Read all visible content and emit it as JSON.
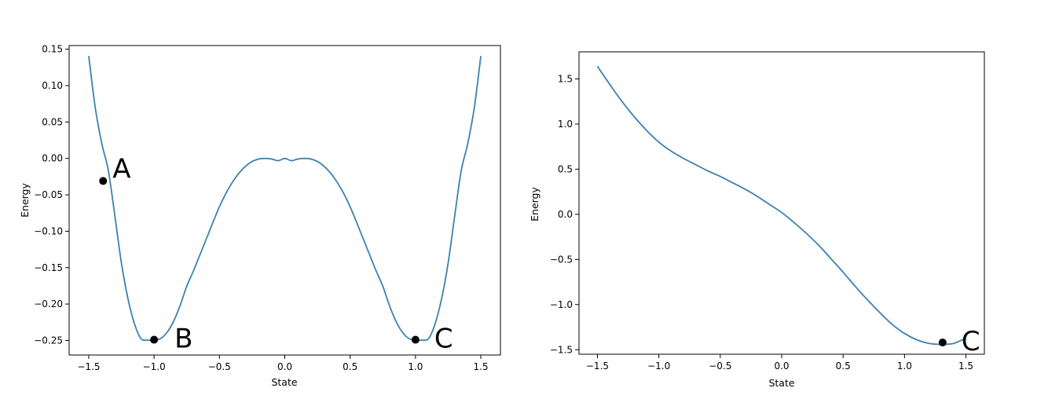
{
  "chart_data": [
    {
      "type": "line",
      "title": "",
      "xlabel": "State",
      "ylabel": "Energy",
      "xlim": [
        -1.65,
        1.65
      ],
      "ylim": [
        -0.27,
        0.155
      ],
      "xticks": [
        -1.5,
        -1.0,
        -0.5,
        0.0,
        0.5,
        1.0,
        1.5
      ],
      "xtick_labels": [
        "−1.5",
        "−1.0",
        "−0.5",
        "0.0",
        "0.5",
        "1.0",
        "1.5"
      ],
      "yticks": [
        0.15,
        0.1,
        0.05,
        0.0,
        -0.05,
        -0.1,
        -0.15,
        -0.2,
        -0.25
      ],
      "ytick_labels": [
        "0.15",
        "0.10",
        "0.05",
        "0.00",
        "−0.05",
        "−0.10",
        "−0.15",
        "−0.20",
        "−0.25"
      ],
      "grid": false,
      "series": [
        {
          "color": "#3b82b0",
          "x": [
            -1.5,
            -1.45,
            -1.4,
            -1.35,
            -1.3,
            -1.25,
            -1.2,
            -1.15,
            -1.1,
            -1.05,
            -1.0,
            -0.95,
            -0.9,
            -0.85,
            -0.8,
            -0.75,
            -0.7,
            -0.65,
            -0.6,
            -0.55,
            -0.5,
            -0.45,
            -0.4,
            -0.35,
            -0.3,
            -0.25,
            -0.2,
            -0.15,
            -0.1,
            -0.05,
            0.0,
            0.05,
            0.1,
            0.15,
            0.2,
            0.25,
            0.3,
            0.35,
            0.4,
            0.45,
            0.5,
            0.55,
            0.6,
            0.65,
            0.7,
            0.75,
            0.8,
            0.85,
            0.9,
            0.95,
            1.0,
            1.05,
            1.1,
            1.15,
            1.2,
            1.25,
            1.3,
            1.35,
            1.4,
            1.45,
            1.5
          ],
          "y": [
            0.1406,
            0.0695,
            0.0204,
            -0.0168,
            -0.0789,
            -0.1436,
            -0.1926,
            -0.2271,
            -0.2475,
            -0.2495,
            -0.25,
            -0.2474,
            -0.2387,
            -0.2234,
            -0.2016,
            -0.1754,
            -0.1549,
            -0.1327,
            -0.1104,
            -0.0879,
            -0.0664,
            -0.0479,
            -0.0325,
            -0.0201,
            -0.0107,
            -0.0042,
            -0.0008,
            0.0,
            -0.0008,
            -0.0031,
            0.0,
            -0.0031,
            -0.0008,
            0.0,
            -0.0008,
            -0.0042,
            -0.0107,
            -0.0201,
            -0.0325,
            -0.0479,
            -0.0664,
            -0.0879,
            -0.1104,
            -0.1327,
            -0.1549,
            -0.1754,
            -0.2016,
            -0.2234,
            -0.2387,
            -0.2474,
            -0.25,
            -0.2495,
            -0.2475,
            -0.2271,
            -0.1926,
            -0.1436,
            -0.0789,
            -0.0168,
            0.0204,
            0.0695,
            0.1406
          ]
        }
      ],
      "points": [
        {
          "label": "A",
          "x": -1.39,
          "y": -0.031
        },
        {
          "label": "B",
          "x": -1.0,
          "y": -0.249
        },
        {
          "label": "C",
          "x": 1.0,
          "y": -0.249
        }
      ]
    },
    {
      "type": "line",
      "title": "",
      "xlabel": "State",
      "ylabel": "Energy",
      "xlim": [
        -1.65,
        1.65
      ],
      "ylim": [
        -1.55,
        1.8
      ],
      "xticks": [
        -1.5,
        -1.0,
        -0.5,
        0.0,
        0.5,
        1.0,
        1.5
      ],
      "xtick_labels": [
        "−1.5",
        "−1.0",
        "−0.5",
        "0.0",
        "0.5",
        "1.0",
        "1.5"
      ],
      "yticks": [
        1.5,
        1.0,
        0.5,
        0.0,
        -0.5,
        -1.0,
        -1.5
      ],
      "ytick_labels": [
        "1.5",
        "1.0",
        "0.5",
        "0.0",
        "−0.5",
        "−1.0",
        "−1.5"
      ],
      "grid": false,
      "series": [
        {
          "color": "#3b82b0",
          "x": [
            -1.5,
            -1.4,
            -1.3,
            -1.2,
            -1.1,
            -1.0,
            -0.9,
            -0.8,
            -0.7,
            -0.6,
            -0.5,
            -0.4,
            -0.3,
            -0.2,
            -0.1,
            0.0,
            0.1,
            0.2,
            0.3,
            0.4,
            0.5,
            0.6,
            0.7,
            0.8,
            0.9,
            1.0,
            1.1,
            1.2,
            1.3,
            1.4,
            1.5
          ],
          "y": [
            1.64,
            1.44,
            1.25,
            1.08,
            0.93,
            0.8,
            0.7,
            0.62,
            0.55,
            0.48,
            0.42,
            0.35,
            0.28,
            0.2,
            0.11,
            0.02,
            -0.09,
            -0.21,
            -0.34,
            -0.49,
            -0.64,
            -0.8,
            -0.95,
            -1.09,
            -1.22,
            -1.32,
            -1.39,
            -1.43,
            -1.44,
            -1.43,
            -1.37
          ]
        }
      ],
      "points": [
        {
          "label": "C",
          "x": 1.31,
          "y": -1.42
        }
      ]
    }
  ]
}
